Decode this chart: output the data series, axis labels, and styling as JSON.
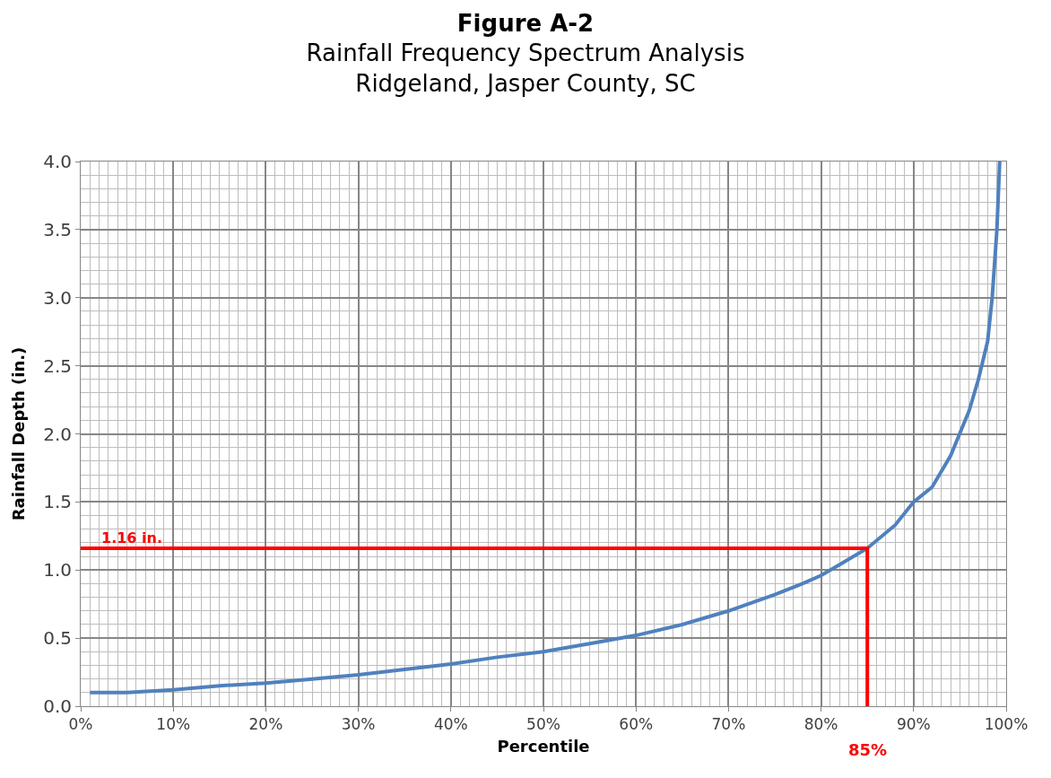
{
  "chart_data": {
    "type": "line",
    "title": "Figure A-2",
    "subtitle": "Rainfall Frequency Spectrum Analysis\nRidgeland, Jasper County, SC",
    "xlabel": "Percentile",
    "ylabel": "Rainfall Depth (in.)",
    "series": [
      {
        "color": "#4f81bd",
        "x": [
          1,
          5,
          10,
          15,
          20,
          25,
          30,
          35,
          40,
          45,
          50,
          55,
          60,
          65,
          70,
          75,
          78,
          80,
          82,
          85,
          88,
          90,
          92,
          94,
          96,
          97,
          98,
          98.5,
          99,
          99.3
        ],
        "values": [
          0.1,
          0.1,
          0.12,
          0.15,
          0.17,
          0.2,
          0.23,
          0.27,
          0.31,
          0.36,
          0.4,
          0.46,
          0.52,
          0.6,
          0.7,
          0.82,
          0.9,
          0.96,
          1.04,
          1.16,
          1.33,
          1.5,
          1.61,
          1.84,
          2.17,
          2.4,
          2.68,
          3.01,
          3.5,
          4.0
        ]
      },
      {
        "color": "#ff0000",
        "x": [
          0,
          85,
          85
        ],
        "values": [
          1.16,
          1.16,
          0
        ]
      }
    ],
    "annotations": [
      {
        "text": "1.16 in.",
        "x": 2,
        "y": 1.16
      },
      {
        "text": "85%",
        "x": 85,
        "y": 0
      }
    ],
    "xlim": [
      0,
      100
    ],
    "ylim": [
      0,
      4
    ],
    "xticks": [
      {
        "value": 0,
        "label": "0%"
      },
      {
        "value": 10,
        "label": "10%"
      },
      {
        "value": 20,
        "label": "20%"
      },
      {
        "value": 30,
        "label": "30%"
      },
      {
        "value": 40,
        "label": "40%"
      },
      {
        "value": 50,
        "label": "50%"
      },
      {
        "value": 60,
        "label": "60%"
      },
      {
        "value": 70,
        "label": "70%"
      },
      {
        "value": 80,
        "label": "80%"
      },
      {
        "value": 90,
        "label": "90%"
      },
      {
        "value": 100,
        "label": "100%"
      }
    ],
    "yticks": [
      {
        "value": 0,
        "label": "0.0"
      },
      {
        "value": 0.5,
        "label": "0.5"
      },
      {
        "value": 1,
        "label": "1.0"
      },
      {
        "value": 1.5,
        "label": "1.5"
      },
      {
        "value": 2,
        "label": "2.0"
      },
      {
        "value": 2.5,
        "label": "2.5"
      },
      {
        "value": 3,
        "label": "3.0"
      },
      {
        "value": 3.5,
        "label": "3.5"
      },
      {
        "value": 4,
        "label": "4.0"
      }
    ],
    "grid": true,
    "marker": "none",
    "line_style": "solid"
  }
}
